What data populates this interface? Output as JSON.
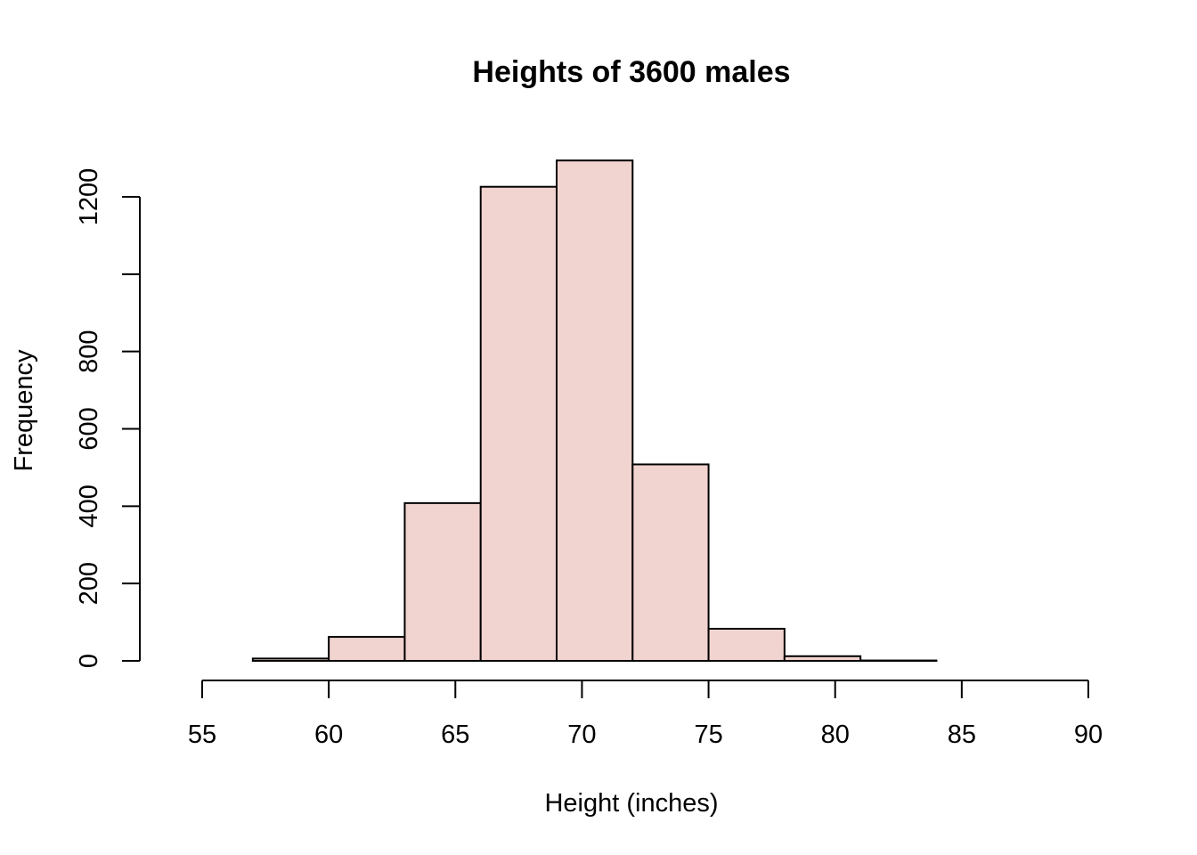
{
  "chart_data": {
    "type": "bar",
    "title": "Heights of 3600 males",
    "xlabel": "Height (inches)",
    "ylabel": "Frequency",
    "bins": [
      {
        "start": 54,
        "end": 57,
        "count": 0
      },
      {
        "start": 57,
        "end": 60,
        "count": 6
      },
      {
        "start": 60,
        "end": 63,
        "count": 62
      },
      {
        "start": 63,
        "end": 66,
        "count": 408
      },
      {
        "start": 66,
        "end": 69,
        "count": 1226
      },
      {
        "start": 69,
        "end": 72,
        "count": 1294
      },
      {
        "start": 72,
        "end": 75,
        "count": 508
      },
      {
        "start": 75,
        "end": 78,
        "count": 83
      },
      {
        "start": 78,
        "end": 81,
        "count": 12
      },
      {
        "start": 81,
        "end": 84,
        "count": 1
      },
      {
        "start": 84,
        "end": 87,
        "count": 0
      },
      {
        "start": 87,
        "end": 90,
        "count": 0
      }
    ],
    "x_ticks": [
      {
        "value": 55,
        "label": "55"
      },
      {
        "value": 60,
        "label": "60"
      },
      {
        "value": 65,
        "label": "65"
      },
      {
        "value": 70,
        "label": "70"
      },
      {
        "value": 75,
        "label": "75"
      },
      {
        "value": 80,
        "label": "80"
      },
      {
        "value": 85,
        "label": "85"
      },
      {
        "value": 90,
        "label": "90"
      }
    ],
    "y_ticks": [
      {
        "value": 0,
        "label": "0"
      },
      {
        "value": 200,
        "label": "200"
      },
      {
        "value": 400,
        "label": "400"
      },
      {
        "value": 600,
        "label": "600"
      },
      {
        "value": 800,
        "label": "800"
      },
      {
        "value": 1000,
        "label": ""
      },
      {
        "value": 1200,
        "label": "1200"
      }
    ],
    "xlim": [
      55,
      90
    ],
    "ylim": [
      0,
      1200
    ],
    "bar_color": "#f1d3cf",
    "edge_color": "#000000",
    "grid": false
  }
}
